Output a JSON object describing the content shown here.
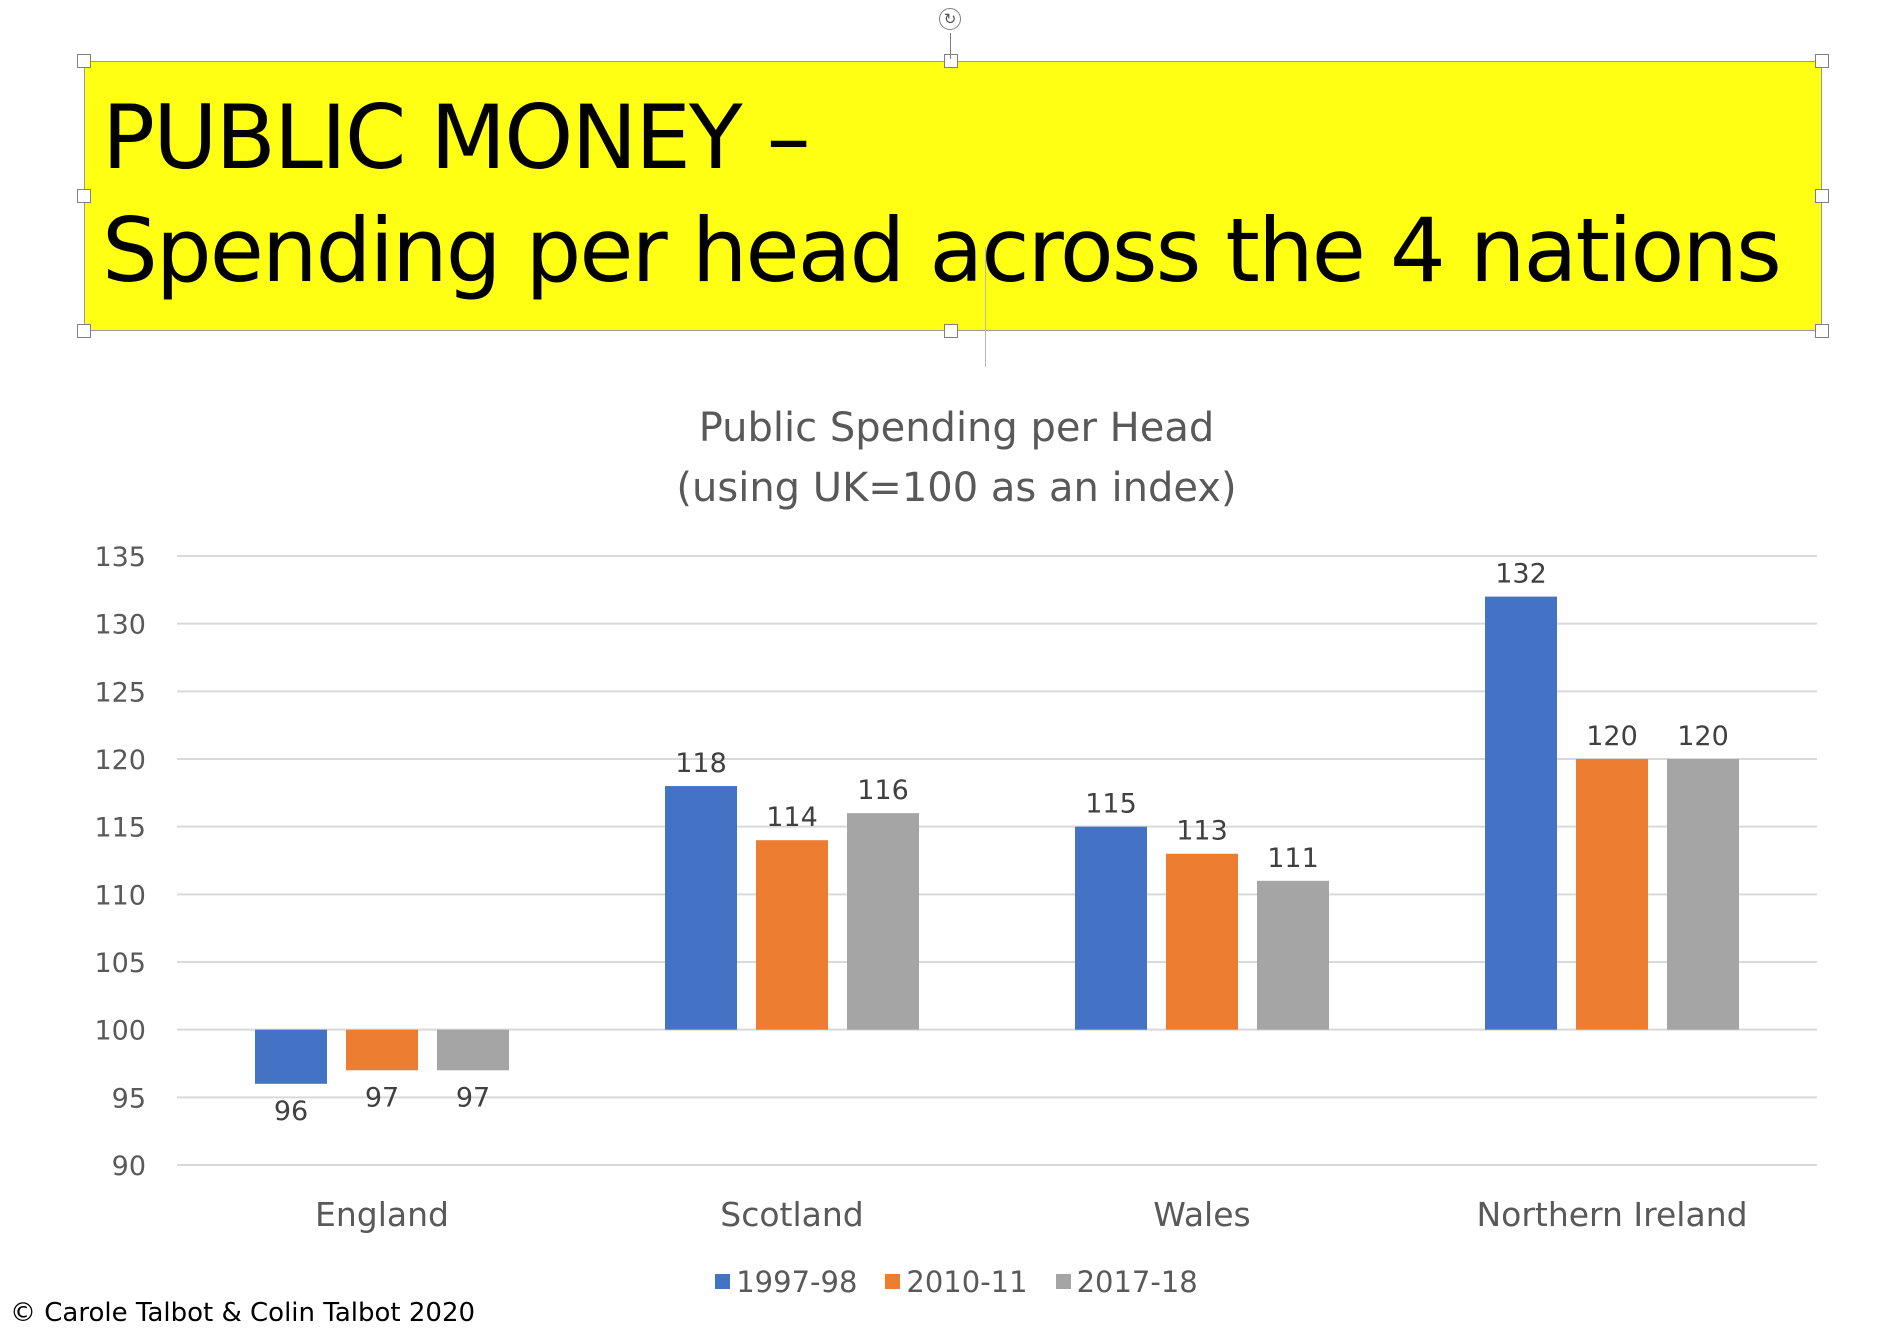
{
  "title_box": {
    "line1": "PUBLIC MONEY –",
    "line2": "Spending per head across the 4 nations"
  },
  "rotate_glyph": "↻",
  "chart_data": {
    "type": "bar",
    "title_lines": [
      "Public Spending per Head",
      "(using UK=100 as an index)"
    ],
    "xlabel": "",
    "ylabel": "",
    "categories": [
      "England",
      "Scotland",
      "Wales",
      "Northern Ireland"
    ],
    "series": [
      {
        "name": "1997-98",
        "color": "#4472c4",
        "values": [
          96,
          118,
          115,
          132
        ],
        "labels": [
          "96",
          "118",
          "115",
          "132"
        ]
      },
      {
        "name": "2010-11",
        "color": "#ed7d31",
        "values": [
          97,
          114,
          113,
          120
        ],
        "labels": [
          "97",
          "114",
          "113",
          "120"
        ]
      },
      {
        "name": "2017-18",
        "color": "#a5a5a5",
        "values": [
          97,
          116,
          111,
          120
        ],
        "labels": [
          "97",
          "116",
          "111",
          "120"
        ]
      }
    ],
    "baseline": 100,
    "ylim": [
      90,
      135
    ],
    "yticks": [
      90,
      95,
      100,
      105,
      110,
      115,
      120,
      125,
      130,
      135
    ],
    "grid": true,
    "legend_position": "bottom"
  },
  "footer": {
    "copyright": "© Carole Talbot & Colin Talbot 2020"
  }
}
